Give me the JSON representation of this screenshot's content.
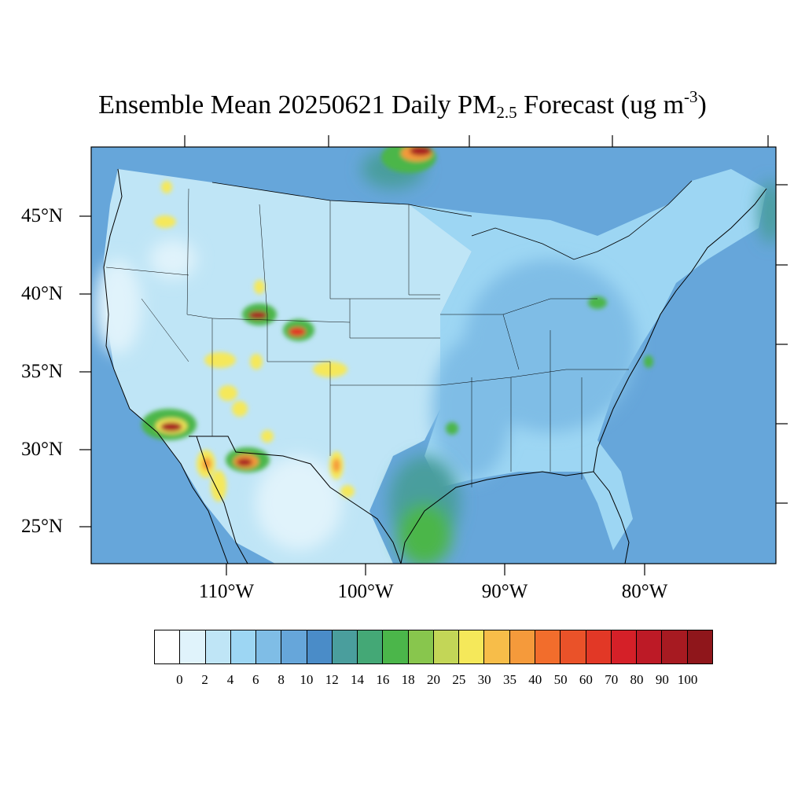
{
  "title": {
    "main": "Ensemble Mean 20250621 Daily PM",
    "subscript": "2.5",
    "after": " Forecast (ug m",
    "superscript": "-3",
    "close": ")"
  },
  "lat_labels": [
    "45°N",
    "40°N",
    "35°N",
    "30°N",
    "25°N"
  ],
  "lon_labels": [
    "110°W",
    "100°W",
    "90°W",
    "80°W"
  ],
  "colorbar": {
    "colors": [
      "#ffffff",
      "#e0f3fb",
      "#bfe5f6",
      "#9dd6f3",
      "#7fbde6",
      "#66a6da",
      "#4a8cc8",
      "#4a9e9d",
      "#44a876",
      "#4bb64a",
      "#88c64d",
      "#c3d657",
      "#f5e85a",
      "#f7bd49",
      "#f59a3b",
      "#f26d2c",
      "#ea5229",
      "#e23826",
      "#d52028",
      "#bd1a26",
      "#a71a21",
      "#8f161b"
    ],
    "labels": [
      "0",
      "2",
      "4",
      "6",
      "8",
      "10",
      "12",
      "14",
      "16",
      "18",
      "20",
      "25",
      "30",
      "35",
      "40",
      "50",
      "60",
      "70",
      "80",
      "90",
      "100"
    ]
  },
  "map_colors": {
    "ocean": "#66a6da",
    "land_low": "#bfe5f6",
    "land_mid": "#9dd6f3",
    "land_east": "#7fbde6",
    "clean": "#e0f3fb",
    "green": "#4bb64a",
    "teal": "#4a9e9d",
    "yellow": "#f5e85a",
    "orange": "#f59a3b",
    "red": "#e23826",
    "darkred": "#a71a21"
  }
}
